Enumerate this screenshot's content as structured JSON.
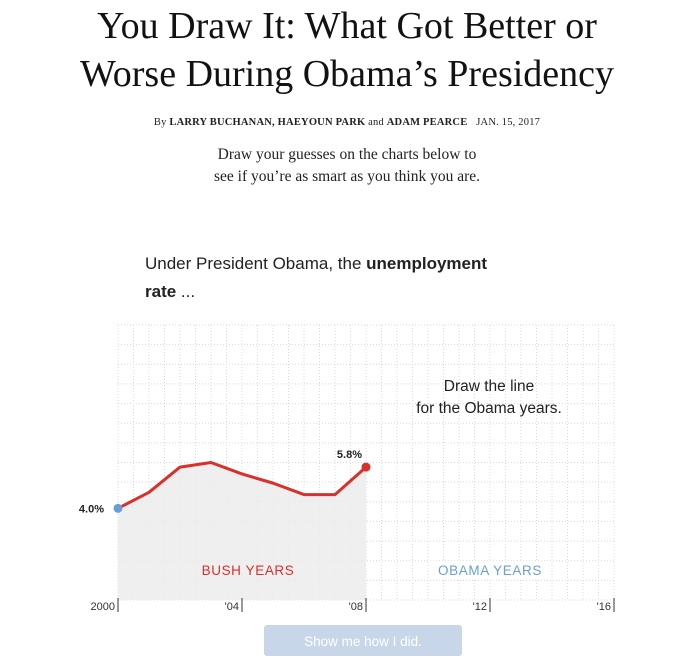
{
  "article": {
    "headline_line1": "You Draw It: What Got Better or",
    "headline_line2": "Worse During Obama’s Presidency",
    "byline_prefix": "By",
    "byline_authors_1": "LARRY BUCHANAN, HAEYOUN PARK",
    "byline_and": "and",
    "byline_authors_2": "ADAM PEARCE",
    "date": "JAN. 15, 2017",
    "dek_line1": "Draw your guesses on the charts below to",
    "dek_line2": "see if you’re as smart as you think you are."
  },
  "question": {
    "prefix": "Under President Obama, the",
    "bold": "unemployment",
    "line2_bold": "rate",
    "suffix": " ..."
  },
  "chart_data": {
    "type": "line",
    "x": [
      2000,
      2001,
      2002,
      2003,
      2004,
      2005,
      2006,
      2007,
      2008
    ],
    "series": [
      {
        "values": [
          4.0,
          4.7,
          5.8,
          6.0,
          5.5,
          5.1,
          4.6,
          4.6,
          5.8
        ],
        "color": "#d9302c"
      }
    ],
    "xlim": [
      2000,
      2016
    ],
    "ylim": [
      0,
      12
    ],
    "x_tick_labels": [
      "2000",
      "'04",
      "'08",
      "'12",
      "'16"
    ],
    "start_label": "4.0%",
    "end_label": "5.8%",
    "start_point_color": "#6a9fd4",
    "end_point_color": "#d9302c",
    "region_labels": {
      "bush": "BUSH YEARS",
      "obama": "OBAMA YEARS"
    },
    "region_colors": {
      "bush": "#d9302c",
      "obama": "#6a9fd4"
    },
    "prompt_line1": "Draw the line",
    "prompt_line2": "for the Obama years.",
    "grid": true
  },
  "button": {
    "label": "Show me how I did."
  }
}
